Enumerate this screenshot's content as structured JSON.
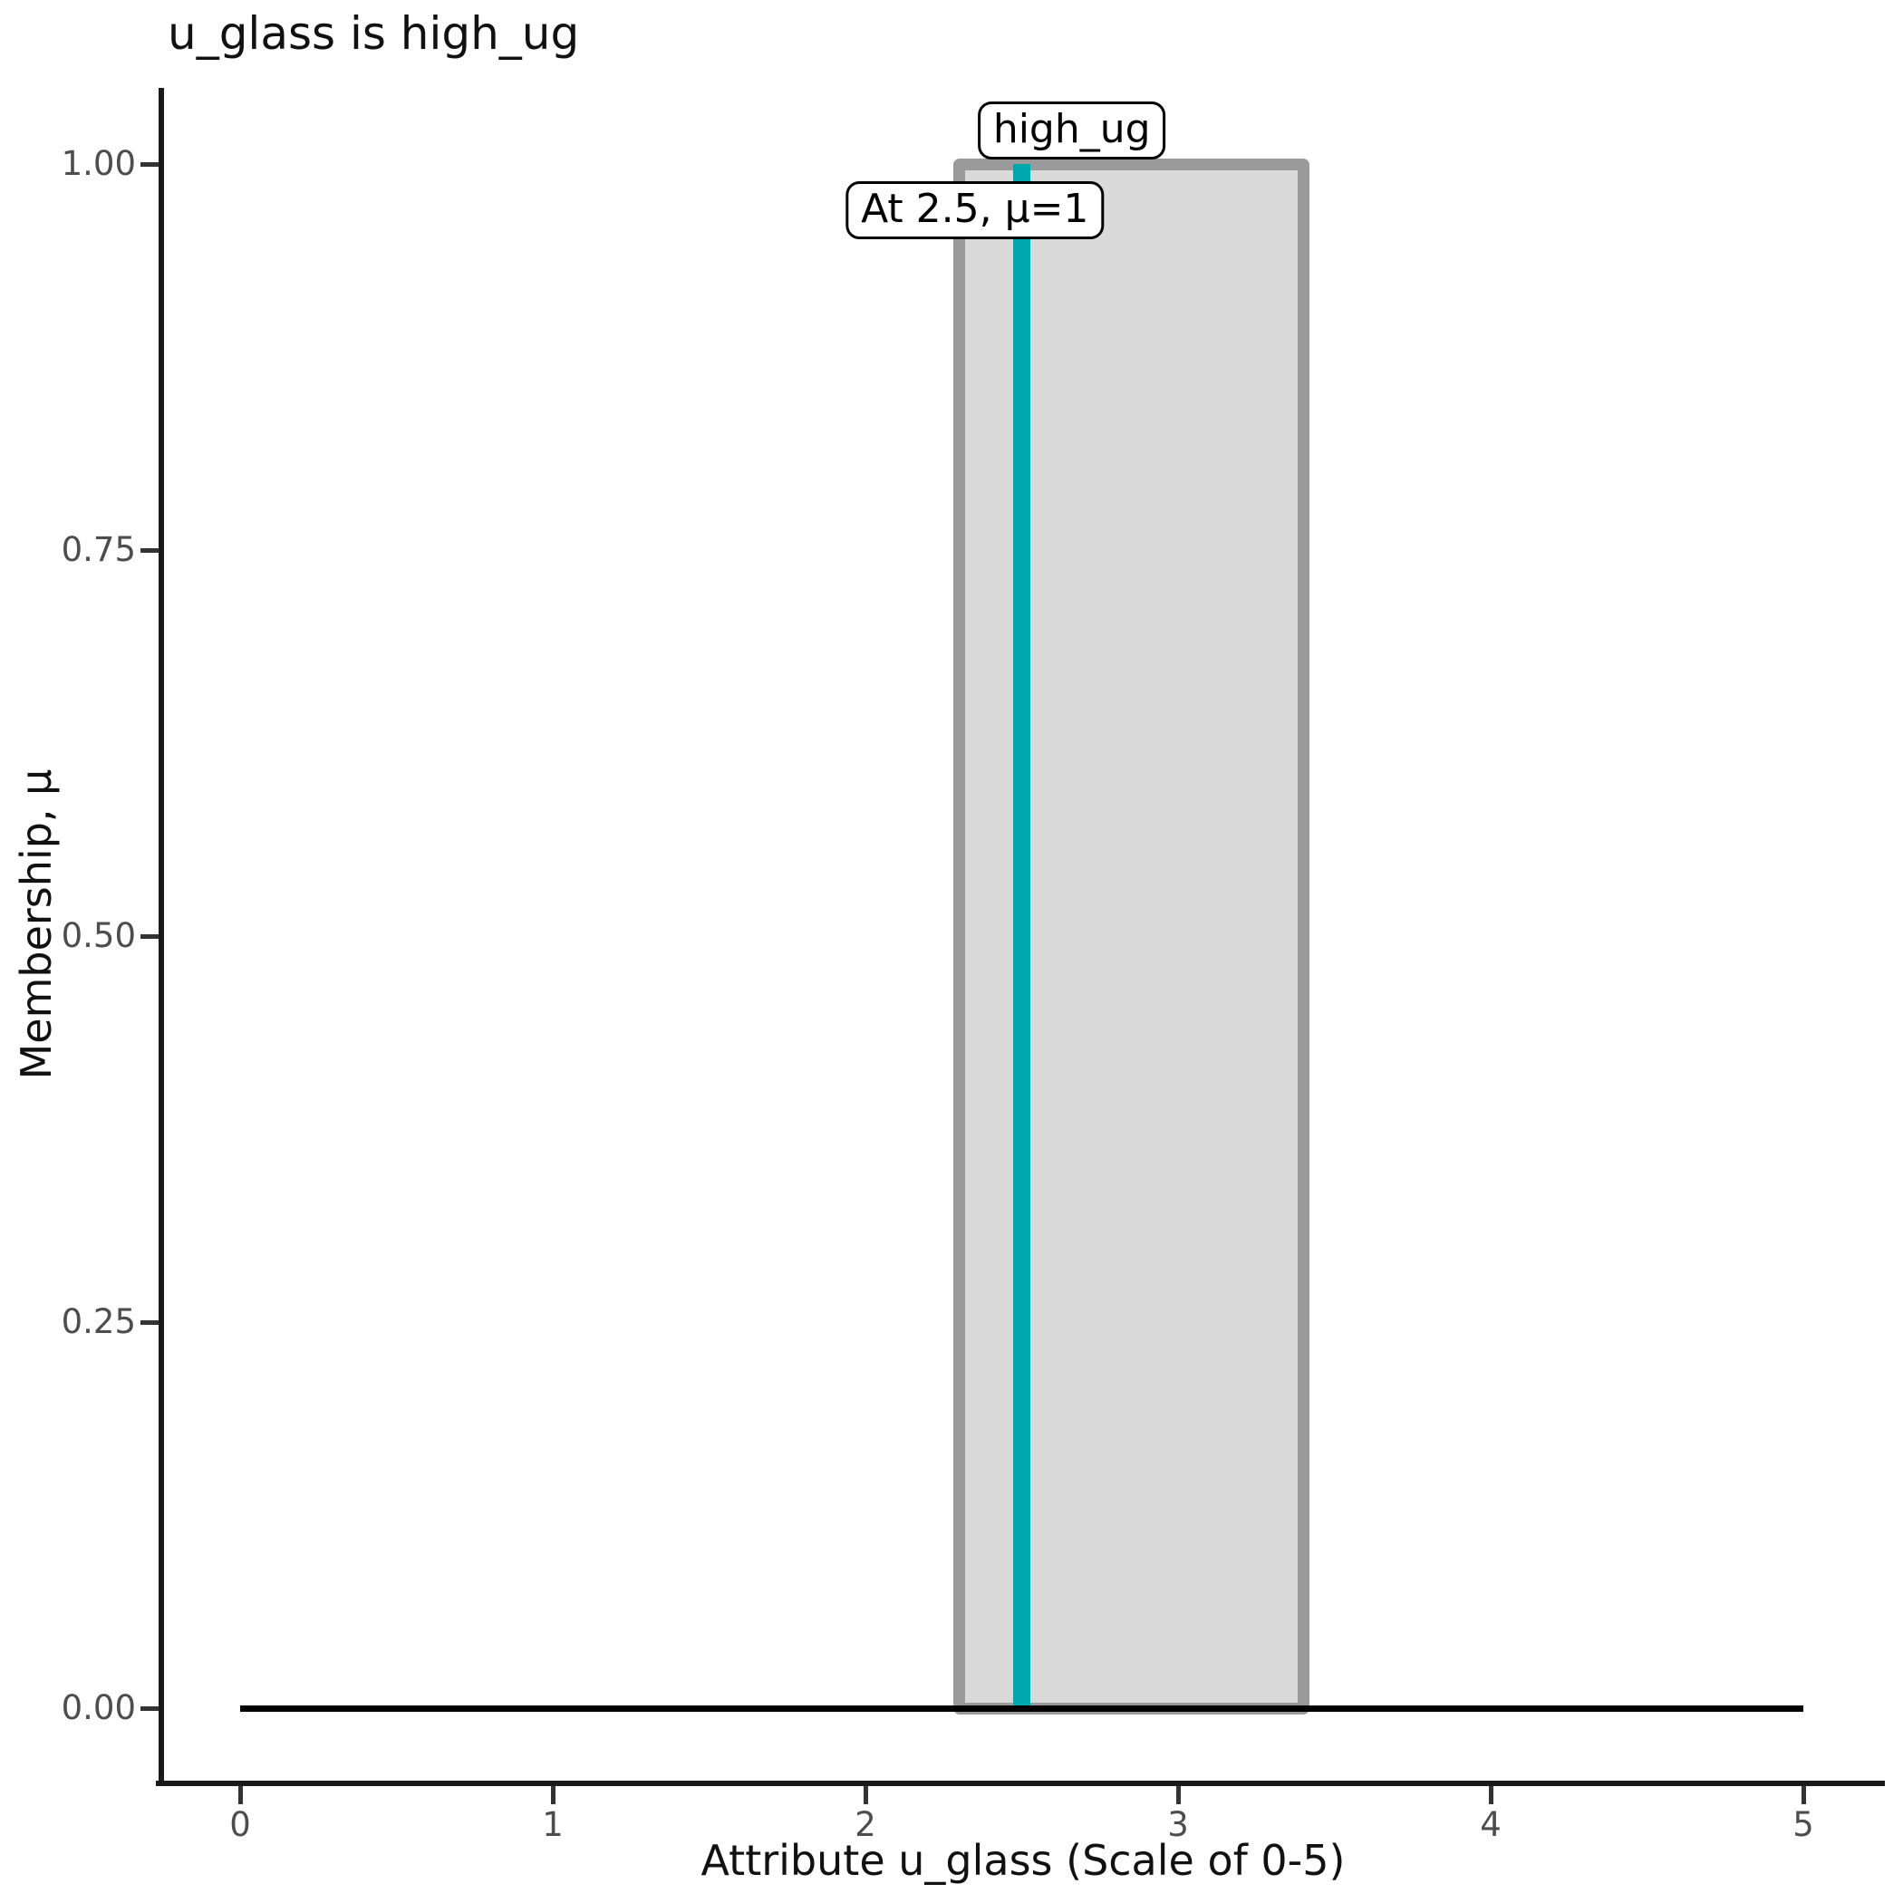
{
  "chart_data": {
    "type": "area",
    "title": "u_glass is high_ug",
    "xlabel": "Attribute u_glass (Scale of 0-5)",
    "ylabel": "Membership, μ",
    "xlim": [
      0,
      5
    ],
    "ylim": [
      0,
      1
    ],
    "grid": false,
    "legend": false,
    "x_ticks": {
      "values": [
        0,
        1,
        2,
        3,
        4,
        5
      ],
      "labels": [
        "0",
        "1",
        "2",
        "3",
        "4",
        "5"
      ]
    },
    "y_ticks": {
      "values": [
        0,
        0.25,
        0.5,
        0.75,
        1
      ],
      "labels": [
        "0.00",
        "0.25",
        "0.50",
        "0.75",
        "1.00"
      ]
    },
    "membership_function": {
      "name": "high_ug",
      "shape": "rectangle",
      "x_start": 2.3,
      "x_end": 3.4,
      "mu_inside": 1,
      "mu_outside": 0,
      "fill_color": "#DADADA",
      "border_color": "#9A9A9A"
    },
    "baseline": {
      "y": 0,
      "x_start": 0,
      "x_end": 5,
      "color": "#000000"
    },
    "marker_line": {
      "x": 2.5,
      "mu": 1,
      "color": "#00A8AE"
    },
    "annotations": [
      {
        "text": "high_ug",
        "x": 2.66,
        "mu": 1.022
      },
      {
        "text": "At 2.5, μ=1",
        "x": 2.35,
        "mu": 0.97
      }
    ]
  }
}
